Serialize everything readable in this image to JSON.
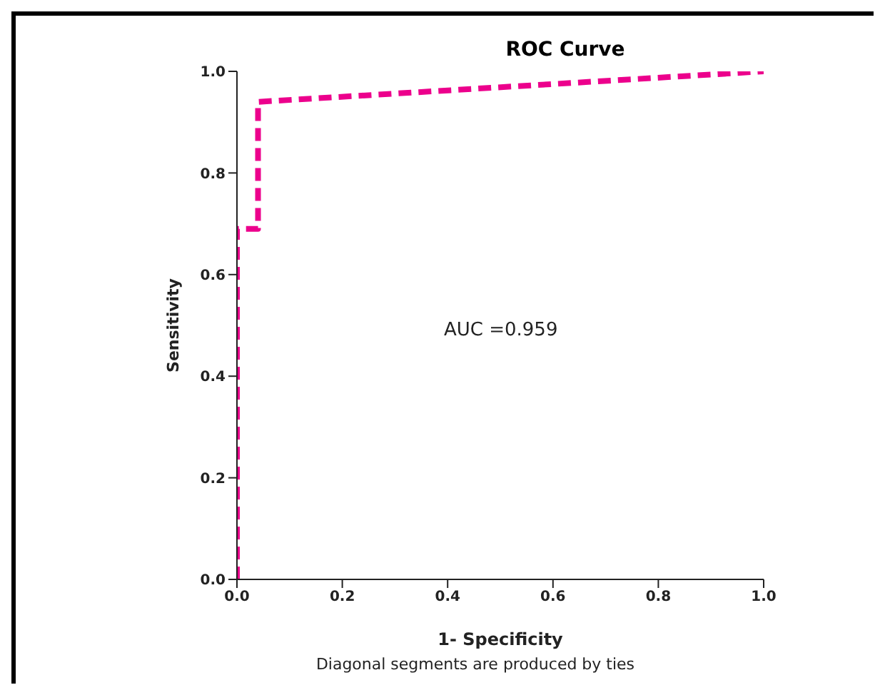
{
  "chart_data": {
    "type": "line",
    "title": "ROC Curve",
    "xlabel": "1- Specificity",
    "ylabel": "Sensitivity",
    "series": [
      {
        "color": "#ec008c",
        "x": [
          0,
          0,
          0.04,
          0.04,
          1
        ],
        "values": [
          0,
          0.69,
          0.69,
          0.94,
          1
        ]
      }
    ],
    "xlim": [
      0,
      1
    ],
    "xticks": [
      {
        "value": 0,
        "label": "0.0"
      },
      0.2,
      0.4,
      0.6,
      0.8,
      {
        "value": 1,
        "label": "1.0"
      }
    ],
    "ylim": [
      0,
      1
    ],
    "yticks": [
      {
        "value": 0,
        "label": "0.0"
      },
      0.2,
      0.4,
      0.6,
      0.8,
      {
        "value": 1,
        "label": "1.0"
      }
    ],
    "grid": false,
    "legend": false,
    "marker": "none",
    "line_style": "dashed",
    "annotations": [
      "AUC =0.959",
      "Diagonal segments are produced by ties"
    ]
  }
}
